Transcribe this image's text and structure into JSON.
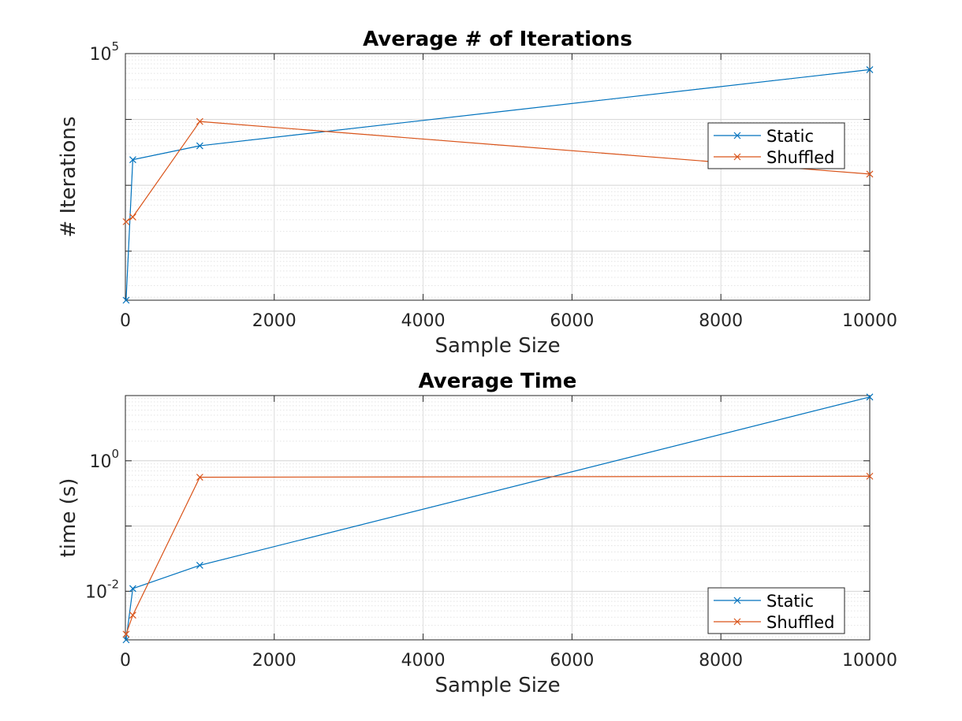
{
  "chart_data": [
    {
      "type": "line",
      "title": "Average # of Iterations",
      "xlabel": "Sample Size",
      "ylabel": "# Iterations",
      "xlim": [
        0,
        10000
      ],
      "ylim": [
        18,
        100000
      ],
      "yscale": "log",
      "grid": true,
      "legend_position": "upper-right",
      "xticks": [
        0,
        2000,
        4000,
        6000,
        8000,
        10000
      ],
      "xtick_labels": [
        "0",
        "2000",
        "4000",
        "6000",
        "8000",
        "10000"
      ],
      "yticks": [
        100000
      ],
      "ytick_labels": [
        "10^5"
      ],
      "x": [
        10,
        100,
        1000,
        10000
      ],
      "series": [
        {
          "name": "Static",
          "color": "#0072BD",
          "x": [
            10,
            100,
            1000,
            10000
          ],
          "values": [
            18,
            2450,
            3980,
            57000
          ]
        },
        {
          "name": "Shuffled",
          "color": "#D95319",
          "x": [
            10,
            100,
            1000,
            10000
          ],
          "values": [
            280,
            330,
            9300,
            1480
          ]
        }
      ]
    },
    {
      "type": "line",
      "title": "Average Time",
      "xlabel": "Sample Size",
      "ylabel": "time (s)",
      "xlim": [
        0,
        10000
      ],
      "ylim": [
        0.0018,
        10
      ],
      "yscale": "log",
      "grid": true,
      "legend_position": "lower-right",
      "xticks": [
        0,
        2000,
        4000,
        6000,
        8000,
        10000
      ],
      "xtick_labels": [
        "0",
        "2000",
        "4000",
        "6000",
        "8000",
        "10000"
      ],
      "yticks": [
        1,
        0.01
      ],
      "ytick_labels": [
        "10^0",
        "10^-2"
      ],
      "x": [
        10,
        100,
        1000,
        10000
      ],
      "series": [
        {
          "name": "Static",
          "color": "#0072BD",
          "x": [
            10,
            100,
            1000,
            10000
          ],
          "values": [
            0.0018,
            0.011,
            0.025,
            9.5
          ]
        },
        {
          "name": "Shuffled",
          "color": "#D95319",
          "x": [
            10,
            100,
            1000,
            10000
          ],
          "values": [
            0.0022,
            0.0043,
            0.56,
            0.58
          ]
        }
      ]
    }
  ]
}
